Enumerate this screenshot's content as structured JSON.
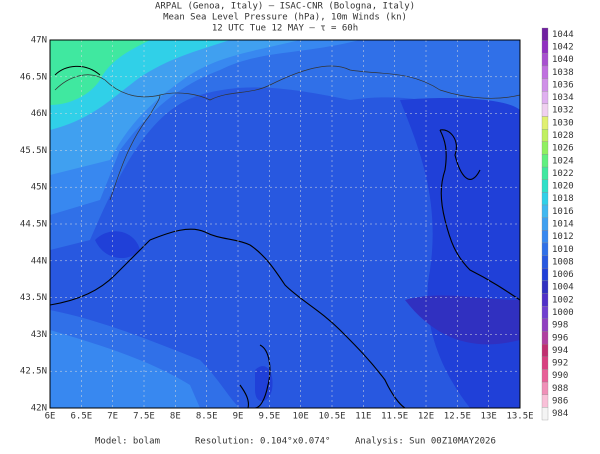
{
  "header": {
    "lines": [
      "ARPAL (Genoa, Italy)  –  ISAC-CNR (Bologna, Italy)",
      "Mean Sea Level Pressure (hPa), 10m Winds (kn)",
      "12 UTC Tue 12 MAY  –  τ = 60h"
    ]
  },
  "map": {
    "lon_labels": [
      "6E",
      "6.5E",
      "7E",
      "7.5E",
      "8E",
      "8.5E",
      "9E",
      "9.5E",
      "10E",
      "10.5E",
      "11E",
      "11.5E",
      "12E",
      "12.5E",
      "13E",
      "13.5E"
    ],
    "lat_labels": [
      "47N",
      "46.5N",
      "46N",
      "45.5N",
      "45N",
      "44.5N",
      "44N",
      "43.5N",
      "43N",
      "42.5N",
      "42N"
    ]
  },
  "colorbar": {
    "labels": [
      "1044",
      "1042",
      "1040",
      "1038",
      "1036",
      "1034",
      "1032",
      "1030",
      "1028",
      "1026",
      "1024",
      "1022",
      "1020",
      "1018",
      "1016",
      "1014",
      "1012",
      "1010",
      "1008",
      "1006",
      "1004",
      "1002",
      "1000",
      "998",
      "996",
      "994",
      "992",
      "990",
      "988",
      "986",
      "984"
    ],
    "colors": [
      "#7020a0",
      "#9030c0",
      "#a850d0",
      "#c070e0",
      "#d090e8",
      "#e0b0f0",
      "#f0d0f0",
      "#e0f070",
      "#c0f060",
      "#90f060",
      "#60f080",
      "#40e8a0",
      "#30e0c8",
      "#30d0e8",
      "#40b8f0",
      "#40a0f0",
      "#3888f0",
      "#3070e8",
      "#2858e0",
      "#2040d8",
      "#3030c0",
      "#5030c8",
      "#7040d0",
      "#9040c0",
      "#b040a0",
      "#c03070",
      "#d84080",
      "#e86098",
      "#f090b8",
      "#f9c0d8",
      "#f4f4f4"
    ]
  },
  "footer": {
    "model": "Model:  bolam",
    "resolution": "Resolution:  0.104°x0.074°",
    "analysis": "Analysis:  Sun  00Z10MAY2026"
  }
}
